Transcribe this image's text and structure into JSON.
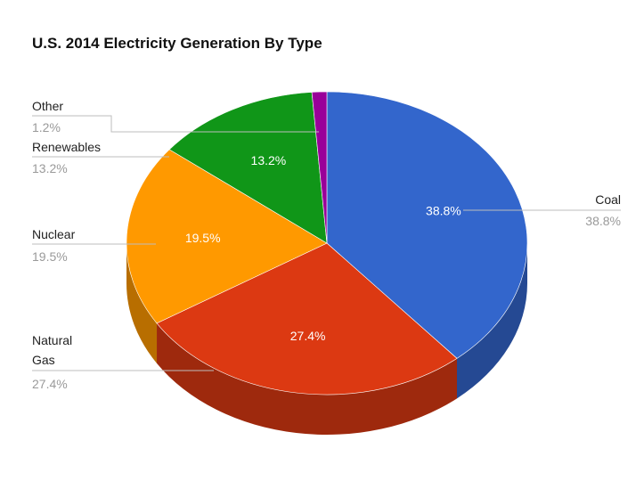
{
  "chart_data": {
    "type": "pie",
    "title": "U.S. 2014 Electricity Generation By Type",
    "unit": "%",
    "slices": [
      {
        "name": "Coal",
        "value": 38.8,
        "label": "38.8%",
        "color": "#3366cc"
      },
      {
        "name": "Natural Gas",
        "name_lines": [
          "Natural",
          "Gas"
        ],
        "value": 27.4,
        "label": "27.4%",
        "color": "#dc3912"
      },
      {
        "name": "Nuclear",
        "value": 19.5,
        "label": "19.5%",
        "color": "#ff9900"
      },
      {
        "name": "Renewables",
        "value": 13.2,
        "label": "13.2%",
        "color": "#109618"
      },
      {
        "name": "Other",
        "value": 1.2,
        "label": "1.2%",
        "color": "#990099"
      }
    ],
    "style": "3d",
    "legend": "labels"
  }
}
